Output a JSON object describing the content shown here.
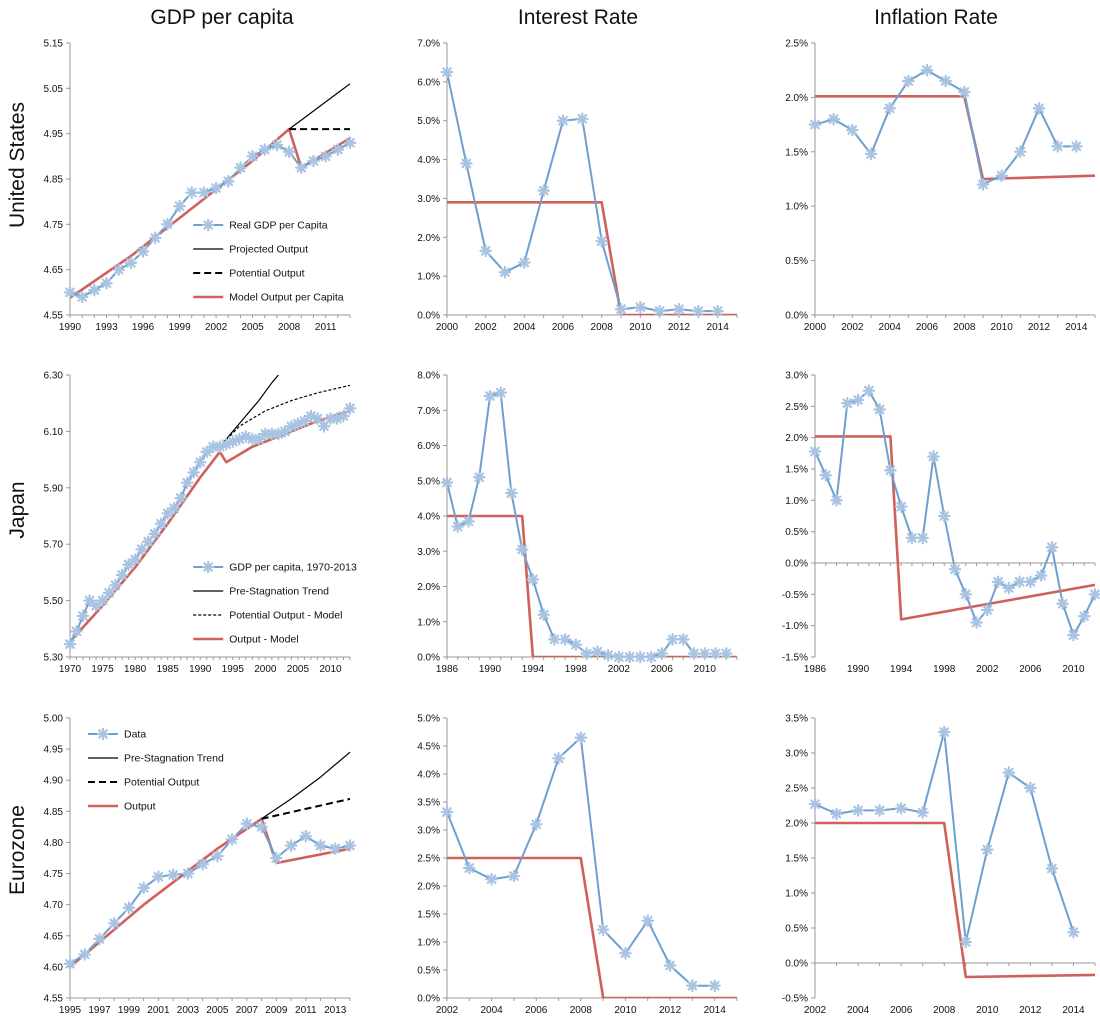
{
  "column_titles": [
    "GDP per capita",
    "Interest Rate",
    "Inflation Rate"
  ],
  "row_titles": [
    "United States",
    "Japan",
    "Eurozone"
  ],
  "chart_data": [
    {
      "id": "us-gdp",
      "type": "line",
      "row": 0,
      "col": 0,
      "ylim": [
        4.55,
        5.15
      ],
      "yticks": [
        "4.55",
        "4.65",
        "4.75",
        "4.85",
        "4.95",
        "5.05",
        "5.15"
      ],
      "xlim": [
        1990,
        2013
      ],
      "xticks": [
        "1990",
        "1993",
        "1996",
        "1999",
        "2002",
        "2005",
        "2008",
        "2011"
      ],
      "legend_position": "bottom-right",
      "series": [
        {
          "name": "Real GDP per Capita",
          "style": "data",
          "x": [
            1990,
            1991,
            1992,
            1993,
            1994,
            1995,
            1996,
            1997,
            1998,
            1999,
            2000,
            2001,
            2002,
            2003,
            2004,
            2005,
            2006,
            2007,
            2008,
            2009,
            2010,
            2011,
            2012,
            2013
          ],
          "y": [
            4.6,
            4.59,
            4.605,
            4.62,
            4.65,
            4.665,
            4.69,
            4.72,
            4.75,
            4.79,
            4.82,
            4.82,
            4.83,
            4.845,
            4.875,
            4.9,
            4.915,
            4.925,
            4.91,
            4.875,
            4.89,
            4.9,
            4.915,
            4.93
          ]
        },
        {
          "name": "Projected Output",
          "style": "solid-black",
          "x": [
            2008,
            2009,
            2010,
            2011,
            2012,
            2013
          ],
          "y": [
            4.96,
            4.98,
            5.0,
            5.02,
            5.04,
            5.06
          ]
        },
        {
          "name": "Potential Output",
          "style": "dashed-black",
          "x": [
            2008,
            2013
          ],
          "y": [
            4.96,
            4.96
          ]
        },
        {
          "name": "Model Output per Capita",
          "style": "model",
          "x": [
            1990,
            1995,
            2000,
            2005,
            2008,
            2009,
            2013
          ],
          "y": [
            4.588,
            4.68,
            4.785,
            4.89,
            4.96,
            4.875,
            4.94
          ]
        }
      ]
    },
    {
      "id": "us-interest",
      "type": "line",
      "row": 0,
      "col": 1,
      "ylim": [
        0,
        7
      ],
      "yticks": [
        "0.0%",
        "1.0%",
        "2.0%",
        "3.0%",
        "4.0%",
        "5.0%",
        "6.0%",
        "7.0%"
      ],
      "xlim": [
        2000,
        2015
      ],
      "xticks": [
        "2000",
        "2002",
        "2004",
        "2006",
        "2008",
        "2010",
        "2012",
        "2014"
      ],
      "series": [
        {
          "name": "",
          "style": "data",
          "x": [
            2000,
            2001,
            2002,
            2003,
            2004,
            2005,
            2006,
            2007,
            2008,
            2009,
            2010,
            2011,
            2012,
            2013,
            2014
          ],
          "y": [
            6.25,
            3.9,
            1.65,
            1.1,
            1.35,
            3.2,
            5.0,
            5.05,
            1.9,
            0.15,
            0.2,
            0.1,
            0.15,
            0.1,
            0.1
          ]
        },
        {
          "name": "",
          "style": "model",
          "x": [
            2000,
            2008,
            2009,
            2015
          ],
          "y": [
            2.9,
            2.9,
            0.0,
            0.0
          ]
        }
      ]
    },
    {
      "id": "us-inflation",
      "type": "line",
      "row": 0,
      "col": 2,
      "ylim": [
        0,
        2.5
      ],
      "yticks": [
        "0.0%",
        "0.5%",
        "1.0%",
        "1.5%",
        "2.0%",
        "2.5%"
      ],
      "xlim": [
        2000,
        2015
      ],
      "xticks": [
        "2000",
        "2002",
        "2004",
        "2006",
        "2008",
        "2010",
        "2012",
        "2014"
      ],
      "series": [
        {
          "name": "",
          "style": "data",
          "x": [
            2000,
            2001,
            2002,
            2003,
            2004,
            2005,
            2006,
            2007,
            2008,
            2009,
            2010,
            2011,
            2012,
            2013,
            2014
          ],
          "y": [
            1.75,
            1.8,
            1.7,
            1.48,
            1.9,
            2.15,
            2.25,
            2.15,
            2.05,
            1.2,
            1.28,
            1.5,
            1.9,
            1.55,
            1.55
          ]
        },
        {
          "name": "",
          "style": "model",
          "x": [
            2000,
            2008,
            2009,
            2015
          ],
          "y": [
            2.01,
            2.01,
            1.25,
            1.28
          ]
        }
      ]
    },
    {
      "id": "japan-gdp",
      "type": "line",
      "row": 1,
      "col": 0,
      "ylim": [
        5.3,
        6.4
      ],
      "yticks": [
        "5.30",
        "5.50",
        "5.70",
        "5.90",
        "6.10",
        "6.30"
      ],
      "xlim": [
        1970,
        2013
      ],
      "xticks": [
        "1970",
        "1975",
        "1980",
        "1985",
        "1990",
        "1995",
        "2000",
        "2005",
        "2010"
      ],
      "legend_position": "bottom-right",
      "series": [
        {
          "name": "GDP per capita, 1970-2013",
          "style": "data",
          "x": [
            1970,
            1971,
            1972,
            1973,
            1974,
            1975,
            1976,
            1977,
            1978,
            1979,
            1980,
            1981,
            1982,
            1983,
            1984,
            1985,
            1986,
            1987,
            1988,
            1989,
            1990,
            1991,
            1992,
            1993,
            1994,
            1995,
            1996,
            1997,
            1998,
            1999,
            2000,
            2001,
            2002,
            2003,
            2004,
            2005,
            2006,
            2007,
            2008,
            2009,
            2010,
            2011,
            2012,
            2013
          ],
          "y": [
            5.35,
            5.4,
            5.46,
            5.52,
            5.5,
            5.52,
            5.55,
            5.58,
            5.62,
            5.66,
            5.68,
            5.72,
            5.75,
            5.78,
            5.82,
            5.86,
            5.88,
            5.92,
            5.98,
            6.02,
            6.06,
            6.1,
            6.12,
            6.12,
            6.13,
            6.14,
            6.15,
            6.16,
            6.15,
            6.15,
            6.17,
            6.17,
            6.17,
            6.18,
            6.2,
            6.21,
            6.22,
            6.24,
            6.23,
            6.2,
            6.23,
            6.23,
            6.24,
            6.27
          ]
        },
        {
          "name": "Pre-Stagnation Trend",
          "style": "solid-black",
          "x": [
            1993,
            1995,
            1997,
            1999,
            2001,
            2002
          ],
          "y": [
            6.12,
            6.18,
            6.24,
            6.3,
            6.37,
            6.4
          ]
        },
        {
          "name": "Potential Output - Model",
          "style": "dotted-black",
          "x": [
            1993,
            1996,
            2000,
            2004,
            2008,
            2013
          ],
          "y": [
            6.12,
            6.2,
            6.26,
            6.3,
            6.33,
            6.36
          ]
        },
        {
          "name": "Output - Model",
          "style": "model",
          "x": [
            1970,
            1975,
            1980,
            1985,
            1990,
            1993,
            1994,
            1998,
            2003,
            2008,
            2013
          ],
          "y": [
            5.36,
            5.5,
            5.65,
            5.82,
            6.0,
            6.1,
            6.06,
            6.12,
            6.17,
            6.22,
            6.26
          ]
        }
      ]
    },
    {
      "id": "japan-interest",
      "type": "line",
      "row": 1,
      "col": 1,
      "ylim": [
        0,
        8
      ],
      "yticks": [
        "0.0%",
        "1.0%",
        "2.0%",
        "3.0%",
        "4.0%",
        "5.0%",
        "6.0%",
        "7.0%",
        "8.0%"
      ],
      "xlim": [
        1986,
        2013
      ],
      "xticks": [
        "1986",
        "1990",
        "1994",
        "1998",
        "2002",
        "2006",
        "2010"
      ],
      "series": [
        {
          "name": "",
          "style": "data",
          "x": [
            1986,
            1987,
            1988,
            1989,
            1990,
            1991,
            1992,
            1993,
            1994,
            1995,
            1996,
            1997,
            1998,
            1999,
            2000,
            2001,
            2002,
            2003,
            2004,
            2005,
            2006,
            2007,
            2008,
            2009,
            2010,
            2011,
            2012
          ],
          "y": [
            4.95,
            3.7,
            3.85,
            5.1,
            7.4,
            7.5,
            4.65,
            3.05,
            2.2,
            1.2,
            0.5,
            0.5,
            0.35,
            0.1,
            0.15,
            0.05,
            0.0,
            0.0,
            0.0,
            0.0,
            0.1,
            0.5,
            0.5,
            0.1,
            0.1,
            0.1,
            0.1
          ]
        },
        {
          "name": "",
          "style": "model",
          "x": [
            1986,
            1993,
            1994,
            2013
          ],
          "y": [
            4.0,
            4.0,
            0.0,
            0.0
          ]
        }
      ]
    },
    {
      "id": "japan-inflation",
      "type": "line",
      "row": 1,
      "col": 2,
      "ylim": [
        -1.5,
        3.0
      ],
      "yticks": [
        "-1.5%",
        "-1.0%",
        "-0.5%",
        "0.0%",
        "0.5%",
        "1.0%",
        "1.5%",
        "2.0%",
        "2.5%",
        "3.0%"
      ],
      "xlim": [
        1986,
        2012
      ],
      "xticks": [
        "1986",
        "1990",
        "1994",
        "1998",
        "2002",
        "2006",
        "2010"
      ],
      "series": [
        {
          "name": "",
          "style": "data",
          "x": [
            1986,
            1987,
            1988,
            1989,
            1990,
            1991,
            1992,
            1993,
            1994,
            1995,
            1996,
            1997,
            1998,
            1999,
            2000,
            2001,
            2002,
            2003,
            2004,
            2005,
            2006,
            2007,
            2008,
            2009,
            2010,
            2011,
            2012
          ],
          "y": [
            1.78,
            1.4,
            1.0,
            2.55,
            2.6,
            2.75,
            2.45,
            1.48,
            0.9,
            0.4,
            0.4,
            1.7,
            0.75,
            -0.1,
            -0.5,
            -0.95,
            -0.75,
            -0.3,
            -0.4,
            -0.3,
            -0.3,
            -0.2,
            0.25,
            -0.65,
            -1.15,
            -0.85,
            -0.5
          ]
        },
        {
          "name": "",
          "style": "model",
          "x": [
            1986,
            1993,
            1994,
            2012
          ],
          "y": [
            2.02,
            2.02,
            -0.9,
            -0.35
          ]
        }
      ]
    },
    {
      "id": "euro-gdp",
      "type": "line",
      "row": 2,
      "col": 0,
      "ylim": [
        4.55,
        5.0
      ],
      "yticks": [
        "4.55",
        "4.60",
        "4.65",
        "4.70",
        "4.75",
        "4.80",
        "4.85",
        "4.90",
        "4.95",
        "5.00"
      ],
      "xlim": [
        1995,
        2014
      ],
      "xticks": [
        "1995",
        "1997",
        "1999",
        "2001",
        "2003",
        "2005",
        "2007",
        "2009",
        "2011",
        "2013"
      ],
      "legend_position": "top-left",
      "series": [
        {
          "name": "Data",
          "style": "data",
          "x": [
            1995,
            1996,
            1997,
            1998,
            1999,
            2000,
            2001,
            2002,
            2003,
            2004,
            2005,
            2006,
            2007,
            2008,
            2009,
            2010,
            2011,
            2012,
            2013,
            2014
          ],
          "y": [
            4.605,
            4.62,
            4.645,
            4.67,
            4.695,
            4.727,
            4.745,
            4.748,
            4.75,
            4.765,
            4.778,
            4.805,
            4.83,
            4.825,
            4.775,
            4.795,
            4.81,
            4.795,
            4.79,
            4.795
          ]
        },
        {
          "name": "Pre-Stagnation Trend",
          "style": "solid-black",
          "x": [
            2008,
            2010,
            2012,
            2014
          ],
          "y": [
            4.838,
            4.87,
            4.905,
            4.945
          ]
        },
        {
          "name": "Potential Output",
          "style": "dashed-black",
          "x": [
            2008,
            2014
          ],
          "y": [
            4.838,
            4.87
          ]
        },
        {
          "name": "Output",
          "style": "model",
          "x": [
            1995,
            2000,
            2005,
            2008,
            2009,
            2014
          ],
          "y": [
            4.6,
            4.7,
            4.79,
            4.838,
            4.767,
            4.79
          ]
        }
      ]
    },
    {
      "id": "euro-interest",
      "type": "line",
      "row": 2,
      "col": 1,
      "ylim": [
        0,
        5
      ],
      "yticks": [
        "0.0%",
        "0.5%",
        "1.0%",
        "1.5%",
        "2.0%",
        "2.5%",
        "3.0%",
        "3.5%",
        "4.0%",
        "4.5%",
        "5.0%"
      ],
      "xlim": [
        2002,
        2015
      ],
      "xticks": [
        "2002",
        "2004",
        "2006",
        "2008",
        "2010",
        "2012",
        "2014"
      ],
      "series": [
        {
          "name": "",
          "style": "data",
          "x": [
            2002,
            2003,
            2004,
            2005,
            2006,
            2007,
            2008,
            2009,
            2010,
            2011,
            2012,
            2013,
            2014
          ],
          "y": [
            3.32,
            2.32,
            2.12,
            2.18,
            3.1,
            4.28,
            4.65,
            1.22,
            0.8,
            1.38,
            0.58,
            0.22,
            0.22
          ]
        },
        {
          "name": "",
          "style": "model",
          "x": [
            2002,
            2008,
            2009,
            2015
          ],
          "y": [
            2.5,
            2.5,
            0.0,
            0.0
          ]
        }
      ]
    },
    {
      "id": "euro-inflation",
      "type": "line",
      "row": 2,
      "col": 2,
      "ylim": [
        -0.5,
        3.5
      ],
      "yticks": [
        "-0.5%",
        "0.0%",
        "0.5%",
        "1.0%",
        "1.5%",
        "2.0%",
        "2.5%",
        "3.0%",
        "3.5%"
      ],
      "xlim": [
        2002,
        2015
      ],
      "xticks": [
        "2002",
        "2004",
        "2006",
        "2008",
        "2010",
        "2012",
        "2014"
      ],
      "series": [
        {
          "name": "",
          "style": "data",
          "x": [
            2002,
            2003,
            2004,
            2005,
            2006,
            2007,
            2008,
            2009,
            2010,
            2011,
            2012,
            2013,
            2014
          ],
          "y": [
            2.27,
            2.13,
            2.18,
            2.18,
            2.21,
            2.15,
            3.3,
            0.3,
            1.62,
            2.72,
            2.5,
            1.35,
            0.44
          ]
        },
        {
          "name": "",
          "style": "model",
          "x": [
            2002,
            2008,
            2009,
            2015
          ],
          "y": [
            2.0,
            2.0,
            -0.2,
            -0.17
          ]
        }
      ]
    }
  ],
  "colors": {
    "data": "#6f9fcf",
    "marker": "#a9c4e2",
    "model": "#d0605a",
    "black": "#000000",
    "axis": "#9a9a9a"
  }
}
